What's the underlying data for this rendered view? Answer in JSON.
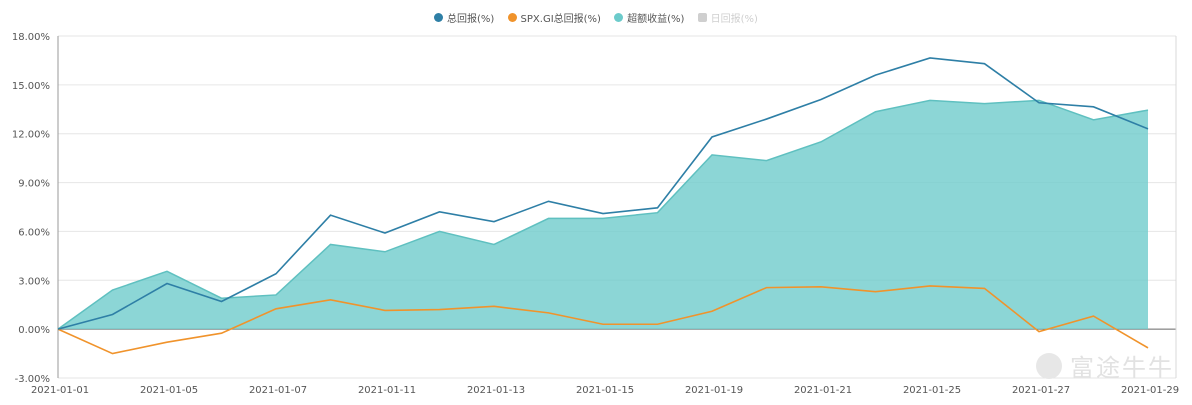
{
  "legend": {
    "items": [
      {
        "label": "总回报(%)",
        "color": "#2e7fa6",
        "shape": "dot",
        "enabled": true
      },
      {
        "label": "SPX.GI总回报(%)",
        "color": "#f0932b",
        "shape": "dot",
        "enabled": true
      },
      {
        "label": "超额收益(%)",
        "color": "#6ccbcb",
        "shape": "dot",
        "enabled": true
      },
      {
        "label": "日回报(%)",
        "color": "#cfcfcf",
        "shape": "square",
        "enabled": false
      }
    ]
  },
  "watermark": {
    "text": "富途牛牛"
  },
  "chart_data": {
    "type": "line",
    "x": [
      "2021-01-01",
      "2021-01-04",
      "2021-01-05",
      "2021-01-06",
      "2021-01-07",
      "2021-01-08",
      "2021-01-11",
      "2021-01-12",
      "2021-01-13",
      "2021-01-14",
      "2021-01-15",
      "2021-01-18",
      "2021-01-19",
      "2021-01-20",
      "2021-01-21",
      "2021-01-22",
      "2021-01-25",
      "2021-01-26",
      "2021-01-27",
      "2021-01-28",
      "2021-01-29"
    ],
    "x_tick_labels": [
      "2021-01-01",
      "2021-01-05",
      "2021-01-07",
      "2021-01-11",
      "2021-01-13",
      "2021-01-15",
      "2021-01-19",
      "2021-01-21",
      "2021-01-25",
      "2021-01-27",
      "2021-01-29"
    ],
    "y_tick_labels": [
      "18.00%",
      "15.00%",
      "12.00%",
      "9.00%",
      "6.00%",
      "3.00%",
      "0.00%",
      "-3.00%"
    ],
    "ylim": [
      -3,
      18
    ],
    "grid": true,
    "legend_position": "top-center",
    "series": [
      {
        "name": "总回报(%)",
        "type": "line",
        "color": "#2e7fa6",
        "values": [
          0.0,
          0.9,
          2.8,
          1.7,
          3.4,
          7.0,
          5.9,
          7.2,
          6.6,
          7.85,
          7.1,
          7.45,
          11.8,
          12.9,
          14.1,
          15.6,
          16.65,
          16.3,
          13.9,
          13.65,
          12.3
        ]
      },
      {
        "name": "SPX.GI总回报(%)",
        "type": "line",
        "color": "#f0932b",
        "values": [
          0.0,
          -1.5,
          -0.8,
          -0.25,
          1.25,
          1.8,
          1.15,
          1.2,
          1.4,
          1.0,
          0.3,
          0.3,
          1.1,
          2.55,
          2.6,
          2.3,
          2.65,
          2.5,
          -0.15,
          0.8,
          -1.15
        ]
      },
      {
        "name": "超额收益(%)",
        "type": "area",
        "color": "#6ccbcb",
        "values": [
          0.0,
          2.4,
          3.55,
          1.9,
          2.1,
          5.2,
          4.75,
          6.0,
          5.2,
          6.8,
          6.8,
          7.15,
          10.7,
          10.35,
          11.5,
          13.35,
          14.05,
          13.85,
          14.05,
          12.85,
          13.45
        ]
      }
    ]
  }
}
